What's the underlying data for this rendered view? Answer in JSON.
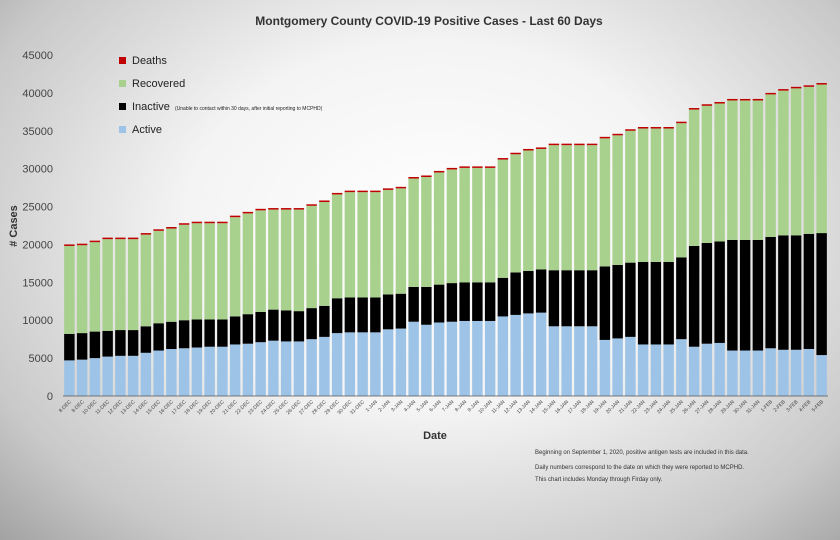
{
  "chart_data": {
    "type": "bar",
    "stacked": true,
    "title": "Montgomery County COVID-19 Positive Cases  - Last 60 Days",
    "xlabel": "Date",
    "ylabel": "# Cases",
    "ylim": [
      0,
      45000
    ],
    "yticks": [
      0,
      5000,
      10000,
      15000,
      20000,
      25000,
      30000,
      35000,
      40000,
      45000
    ],
    "grid": false,
    "legend_position": "top-left",
    "categories": [
      "8-DEC",
      "9-DEC",
      "10-DEC",
      "11-DEC",
      "12-DEC",
      "13-DEC",
      "14-DEC",
      "15-DEC",
      "16-DEC",
      "17-DEC",
      "18-DEC",
      "19-DEC",
      "20-DEC",
      "21-DEC",
      "22-DEC",
      "23-DEC",
      "24-DEC",
      "25-DEC",
      "26-DEC",
      "27-DEC",
      "28-DEC",
      "29-DEC",
      "30-DEC",
      "31-DEC",
      "1-JAN",
      "2-JAN",
      "3-JAN",
      "4-JAN",
      "5-JAN",
      "6-JAN",
      "7-JAN",
      "8-JAN",
      "9-JAN",
      "10-JAN",
      "11-JAN",
      "12-JAN",
      "13-JAN",
      "14-JAN",
      "15-JAN",
      "16-JAN",
      "17-JAN",
      "18-JAN",
      "19-JAN",
      "20-JAN",
      "21-JAN",
      "22-JAN",
      "23-JAN",
      "24-JAN",
      "25-JAN",
      "26-JAN",
      "27-JAN",
      "28-JAN",
      "29-JAN",
      "30-JAN",
      "31-JAN",
      "1-FEB",
      "2-FEB",
      "3-FEB",
      "4-FEB",
      "5-FEB"
    ],
    "series": [
      {
        "name": "Active",
        "color": "#9dc3e6",
        "values": [
          4700,
          4800,
          5000,
          5200,
          5300,
          5300,
          5700,
          6000,
          6200,
          6300,
          6400,
          6500,
          6500,
          6800,
          6900,
          7100,
          7300,
          7200,
          7200,
          7500,
          7800,
          8300,
          8400,
          8400,
          8400,
          8800,
          8900,
          9800,
          9400,
          9700,
          9800,
          9900,
          9900,
          9900,
          10500,
          10700,
          10900,
          11000,
          9200,
          9200,
          9200,
          9200,
          7400,
          7600,
          7800,
          6800,
          6800,
          6800,
          7500,
          6500,
          6900,
          7000,
          6000,
          6000,
          6000,
          6300,
          6100,
          6100,
          6200,
          5400
        ]
      },
      {
        "name": "Inactive",
        "color": "#000000",
        "values": [
          3500,
          3500,
          3500,
          3400,
          3400,
          3400,
          3500,
          3600,
          3600,
          3700,
          3700,
          3600,
          3600,
          3700,
          3900,
          4000,
          4100,
          4100,
          4000,
          4100,
          4100,
          4600,
          4600,
          4600,
          4600,
          4600,
          4600,
          4600,
          5000,
          5000,
          5100,
          5100,
          5100,
          5100,
          5100,
          5600,
          5600,
          5700,
          7400,
          7400,
          7400,
          7400,
          9700,
          9700,
          9800,
          10900,
          10900,
          10900,
          10800,
          13300,
          13300,
          13400,
          14600,
          14600,
          14600,
          14700,
          15100,
          15100,
          15200,
          16100
        ]
      },
      {
        "name": "Recovered",
        "color": "#a9d18e",
        "values": [
          11600,
          11600,
          11800,
          12100,
          12000,
          12000,
          12100,
          12200,
          12300,
          12600,
          12700,
          12700,
          12700,
          13100,
          13300,
          13400,
          13200,
          13300,
          13400,
          13500,
          13700,
          13700,
          13900,
          13900,
          13900,
          13800,
          13900,
          14300,
          14500,
          14800,
          15000,
          15100,
          15100,
          15100,
          15600,
          15600,
          15900,
          15900,
          16500,
          16500,
          16500,
          16500,
          16900,
          17100,
          17400,
          17600,
          17600,
          17600,
          17700,
          18000,
          18100,
          18200,
          18400,
          18400,
          18400,
          18800,
          19100,
          19400,
          19400,
          19600
        ]
      },
      {
        "name": "Deaths",
        "color": "#c00000",
        "values": [
          200,
          200,
          200,
          200,
          200,
          200,
          200,
          200,
          200,
          200,
          200,
          200,
          200,
          200,
          200,
          200,
          200,
          200,
          200,
          200,
          200,
          200,
          200,
          200,
          200,
          200,
          200,
          200,
          200,
          200,
          200,
          200,
          200,
          200,
          200,
          200,
          200,
          200,
          200,
          200,
          200,
          200,
          200,
          200,
          200,
          200,
          200,
          200,
          200,
          200,
          200,
          200,
          200,
          200,
          200,
          200,
          200,
          200,
          200,
          200
        ]
      }
    ],
    "legend_note": "(Unable to contact within 30 days, after initial reporting to MCPHD)",
    "footnotes": [
      "Beginning on September 1, 2020, positive antigen tests are included in this data.",
      "Daily numbers correspond to the date on which they were reported to MCPHD.",
      "This chart includes Monday through Firday only."
    ]
  }
}
